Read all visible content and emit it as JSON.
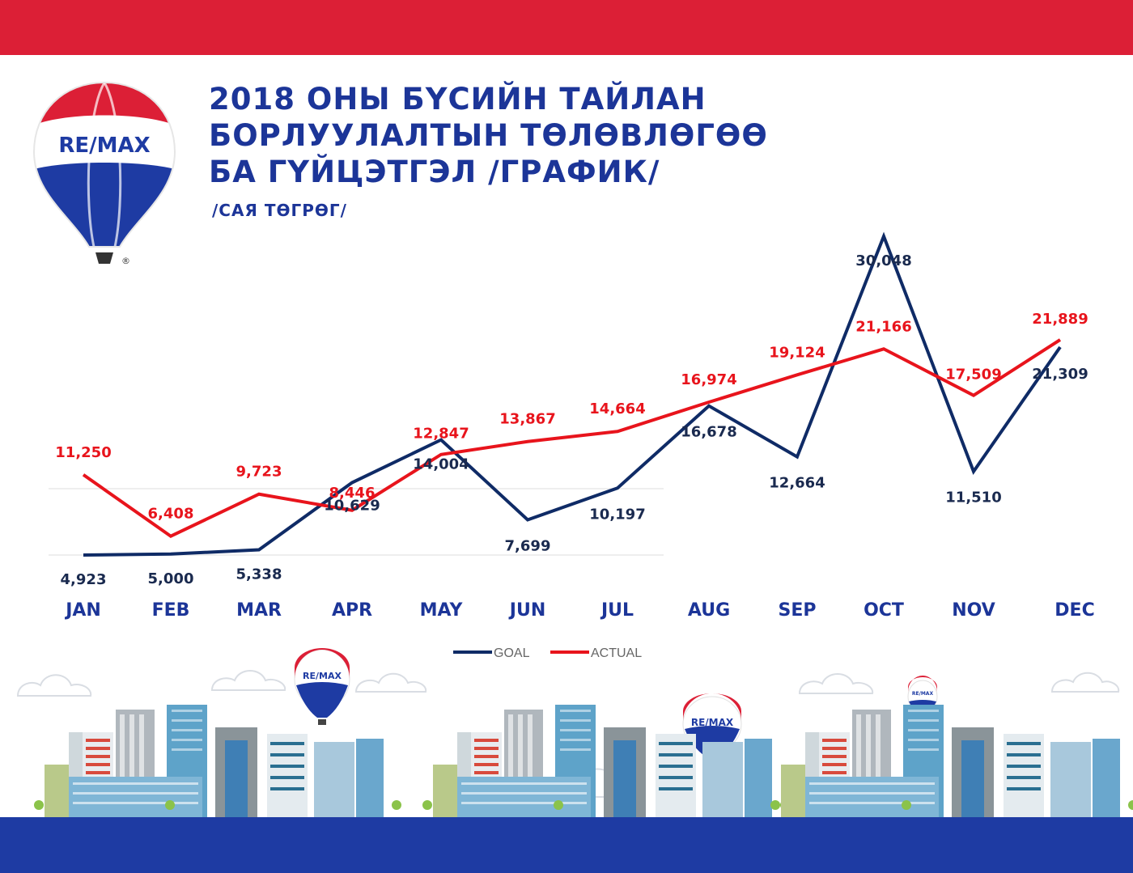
{
  "header": {
    "title_lines": [
      "2018 ОНЫ БҮСИЙН ТАЙЛАН",
      "БОРЛУУЛАЛТЫН ТӨЛӨВЛӨГӨӨ",
      "БА ГҮЙЦЭТГЭЛ /ГРАФИК/"
    ],
    "subtitle": "/САЯ ТӨГРӨГ/"
  },
  "brand": {
    "logo_text": "RE/MAX",
    "registered_mark": "®",
    "colors": {
      "red": "#dc1f36",
      "blue": "#1e3ba3",
      "navy": "#0f2b66"
    }
  },
  "chart_data": {
    "type": "line",
    "categories": [
      "JAN",
      "FEB",
      "MAR",
      "APR",
      "MAY",
      "JUN",
      "JUL",
      "AUG",
      "SEP",
      "OCT",
      "NOV",
      "DEC"
    ],
    "series": [
      {
        "name": "GOAL",
        "color": "#0f2b66",
        "values": [
          4923,
          5000,
          5338,
          10629,
          14004,
          7699,
          10197,
          16678,
          12664,
          30048,
          11510,
          21309
        ],
        "labels": [
          "4,923",
          "5,000",
          "5,338",
          "10,629",
          "14,004",
          "7,699",
          "10,197",
          "16,678",
          "12,664",
          "30,048",
          "11,510",
          "21,309"
        ]
      },
      {
        "name": "ACTUAL",
        "color": "#e8141c",
        "values": [
          11250,
          6408,
          9723,
          8446,
          12847,
          13867,
          14664,
          16974,
          19124,
          21166,
          17509,
          21889
        ],
        "labels": [
          "11,250",
          "6,408",
          "9,723",
          "8,446",
          "12,847",
          "13,867",
          "14,664",
          "16,974",
          "19,124",
          "21,166",
          "17,509",
          "21,889"
        ]
      }
    ],
    "legend_position": "bottom",
    "grid": false
  }
}
